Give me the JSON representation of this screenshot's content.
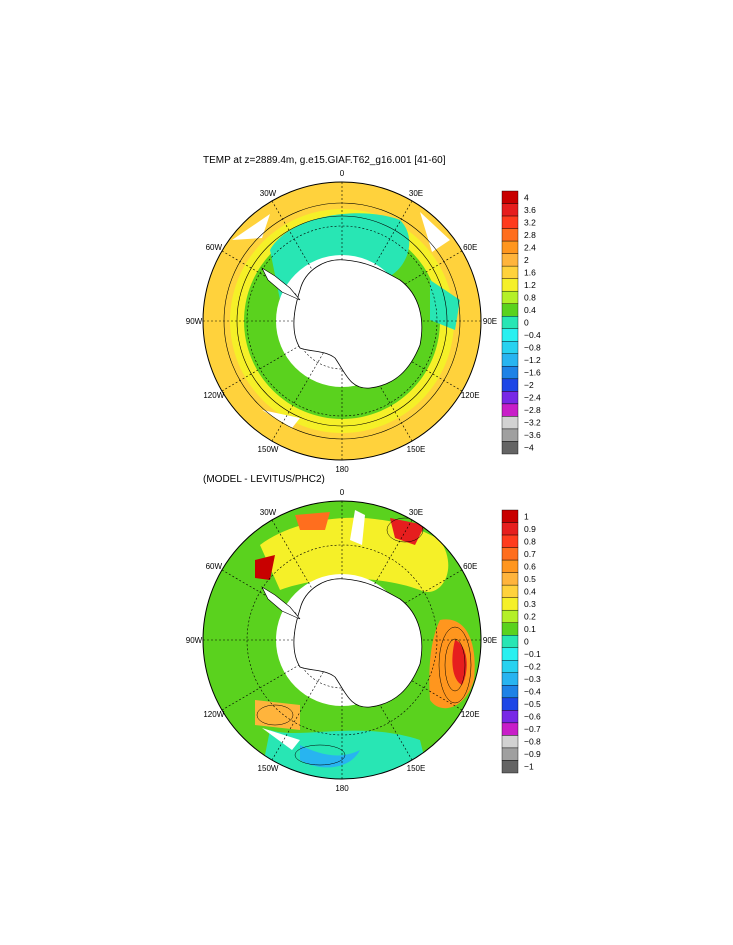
{
  "panels": [
    {
      "title": "TEMP at z=2889.4m, g.e15.GIAF.T62_g16.001 [41-60]",
      "colorbar": {
        "labels": [
          "4",
          "3.6",
          "3.2",
          "2.8",
          "2.4",
          "2",
          "1.6",
          "1.2",
          "0.8",
          "0.4",
          "0",
          "−0.4",
          "−0.8",
          "−1.2",
          "−1.6",
          "−2",
          "−2.4",
          "−2.8",
          "−3.2",
          "−3.6",
          "−4"
        ],
        "colors": [
          "#c80000",
          "#e61e1e",
          "#ff3c1e",
          "#ff6e1e",
          "#ff961e",
          "#ffb43c",
          "#ffd23c",
          "#f5f028",
          "#b4f028",
          "#5ad21e",
          "#28e6b4",
          "#28f0f0",
          "#28d2f0",
          "#28b4f0",
          "#1e82e6",
          "#1e46e6",
          "#7828e6",
          "#c81ec8",
          "#d2d2d2",
          "#a0a0a0",
          "#646464"
        ]
      }
    },
    {
      "title": "(MODEL - LEVITUS/PHC2)",
      "colorbar": {
        "labels": [
          "1",
          "0.9",
          "0.8",
          "0.7",
          "0.6",
          "0.5",
          "0.4",
          "0.3",
          "0.2",
          "0.1",
          "0",
          "−0.1",
          "−0.2",
          "−0.3",
          "−0.4",
          "−0.5",
          "−0.6",
          "−0.7",
          "−0.8",
          "−0.9",
          "−1"
        ],
        "colors": [
          "#c80000",
          "#e61e1e",
          "#ff3c1e",
          "#ff6e1e",
          "#ff961e",
          "#ffb43c",
          "#ffd23c",
          "#f5f028",
          "#b4f028",
          "#5ad21e",
          "#28e6b4",
          "#28f0f0",
          "#28d2f0",
          "#28b4f0",
          "#1e82e6",
          "#1e46e6",
          "#7828e6",
          "#c81ec8",
          "#d2d2d2",
          "#a0a0a0",
          "#646464"
        ]
      }
    }
  ],
  "longitude_labels": [
    "0",
    "30E",
    "60E",
    "90E",
    "120E",
    "150E",
    "180",
    "150W",
    "120W",
    "90W",
    "60W",
    "30W"
  ]
}
